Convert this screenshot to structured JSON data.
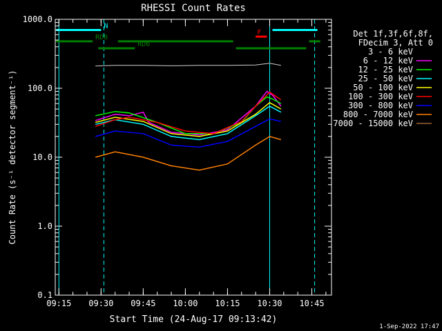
{
  "chart_data": {
    "type": "line",
    "title": "RHESSI Count Rates",
    "xlabel": "Start Time (24-Aug-17 09:13:42)",
    "ylabel": "Count Rate (s⁻¹ detector segment⁻¹)",
    "yscale": "log",
    "xlim": [
      "09:13:42",
      "10:52:00"
    ],
    "ylim": [
      0.1,
      1000.0
    ],
    "xticks": [
      "09:15",
      "09:30",
      "09:45",
      "10:00",
      "10:15",
      "10:30",
      "10:45"
    ],
    "yticks": [
      {
        "value": 0.1,
        "label": "0.1"
      },
      {
        "value": 1.0,
        "label": "1.0"
      },
      {
        "value": 10.0,
        "label": "10.0"
      },
      {
        "value": 100.0,
        "label": "100.0"
      },
      {
        "value": 1000.0,
        "label": "1000.0"
      }
    ],
    "legend_header": [
      "Det 1f,3f,6f,8f,",
      "FDecim 3, Att 0"
    ],
    "legend_position": "right",
    "footer_date": "1-Sep-2022 17:47",
    "data_start": "09:27",
    "data_end": "10:35",
    "series": [
      {
        "name": "3 - 6 keV",
        "color": "#000000",
        "points": [
          [
            "09:28",
            210
          ],
          [
            "09:35",
            215
          ],
          [
            "09:45",
            215
          ],
          [
            "09:55",
            212
          ],
          [
            "10:05",
            215
          ],
          [
            "10:15",
            215
          ],
          [
            "10:25",
            218
          ],
          [
            "10:30",
            230
          ],
          [
            "10:34",
            215
          ]
        ]
      },
      {
        "name": "6 - 12 keV",
        "color": "#ff00ff",
        "points": [
          [
            "09:28",
            34
          ],
          [
            "09:35",
            42
          ],
          [
            "09:40",
            40
          ],
          [
            "09:45",
            45
          ],
          [
            "09:47",
            32
          ],
          [
            "09:55",
            23
          ],
          [
            "10:05",
            21
          ],
          [
            "10:15",
            25
          ],
          [
            "10:25",
            55
          ],
          [
            "10:29",
            90
          ],
          [
            "10:31",
            80
          ],
          [
            "10:34",
            55
          ]
        ]
      },
      {
        "name": "12 - 25 keV",
        "color": "#00ff00",
        "points": [
          [
            "09:28",
            40
          ],
          [
            "09:35",
            46
          ],
          [
            "09:40",
            44
          ],
          [
            "09:50",
            32
          ],
          [
            "10:00",
            22
          ],
          [
            "10:10",
            22
          ],
          [
            "10:20",
            32
          ],
          [
            "10:25",
            55
          ],
          [
            "10:29",
            75
          ],
          [
            "10:31",
            70
          ],
          [
            "10:34",
            60
          ]
        ]
      },
      {
        "name": "25 - 50 keV",
        "color": "#00ffff",
        "points": [
          [
            "09:28",
            30
          ],
          [
            "09:35",
            35
          ],
          [
            "09:45",
            30
          ],
          [
            "09:55",
            20
          ],
          [
            "10:05",
            18
          ],
          [
            "10:15",
            22
          ],
          [
            "10:25",
            40
          ],
          [
            "10:30",
            55
          ],
          [
            "10:34",
            45
          ]
        ]
      },
      {
        "name": "50 - 100 keV",
        "color": "#ffff00",
        "points": [
          [
            "09:28",
            32
          ],
          [
            "09:35",
            38
          ],
          [
            "09:45",
            33
          ],
          [
            "09:55",
            22
          ],
          [
            "10:05",
            20
          ],
          [
            "10:15",
            24
          ],
          [
            "10:25",
            42
          ],
          [
            "10:30",
            62
          ],
          [
            "10:34",
            50
          ]
        ]
      },
      {
        "name": "100 - 300 keV",
        "color": "#ff0000",
        "points": [
          [
            "09:28",
            28
          ],
          [
            "09:35",
            35
          ],
          [
            "09:40",
            38
          ],
          [
            "09:50",
            32
          ],
          [
            "10:00",
            24
          ],
          [
            "10:10",
            22
          ],
          [
            "10:20",
            33
          ],
          [
            "10:25",
            55
          ],
          [
            "10:30",
            88
          ],
          [
            "10:34",
            68
          ]
        ]
      },
      {
        "name": "300 - 800 keV",
        "color": "#0000ff",
        "points": [
          [
            "09:28",
            20
          ],
          [
            "09:35",
            24
          ],
          [
            "09:45",
            22
          ],
          [
            "09:55",
            15
          ],
          [
            "10:05",
            14
          ],
          [
            "10:15",
            17
          ],
          [
            "10:25",
            28
          ],
          [
            "10:30",
            36
          ],
          [
            "10:34",
            33
          ]
        ]
      },
      {
        "name": "800 - 7000 keV",
        "color": "#ff8000",
        "points": [
          [
            "09:28",
            10
          ],
          [
            "09:35",
            12
          ],
          [
            "09:45",
            10
          ],
          [
            "09:55",
            7.5
          ],
          [
            "10:05",
            6.5
          ],
          [
            "10:15",
            8
          ],
          [
            "10:25",
            15
          ],
          [
            "10:30",
            20
          ],
          [
            "10:34",
            18
          ]
        ]
      },
      {
        "name": "7000 - 15000 keV",
        "color": "#996633",
        "points": []
      }
    ],
    "annotations": [
      {
        "label": "N",
        "color": "#00ffff",
        "kind": "bar",
        "segments": [
          [
            "09:14",
            "09:30"
          ],
          [
            "10:31",
            "10:47"
          ]
        ],
        "level": 700
      },
      {
        "label": "RD0",
        "color": "#008000",
        "kind": "bar",
        "segments": [
          [
            "09:14",
            "09:27"
          ],
          [
            "09:36",
            "10:17"
          ],
          [
            "10:44",
            "10:48"
          ]
        ],
        "level": 480
      },
      {
        "label": "RD6",
        "color": "#008000",
        "kind": "bar",
        "segments": [
          [
            "09:29",
            "09:42"
          ],
          [
            "10:18",
            "10:43"
          ]
        ],
        "level": 380
      },
      {
        "label": "F",
        "color": "#ff0000",
        "kind": "bar",
        "segments": [
          [
            "10:25",
            "10:29"
          ]
        ],
        "level": 560
      }
    ],
    "vlines": [
      {
        "time": "09:15",
        "color": "#00ffff",
        "style": "solid"
      },
      {
        "time": "09:31",
        "color": "#00ffff",
        "style": "dashed"
      },
      {
        "time": "10:30",
        "color": "#00ffff",
        "style": "solid"
      },
      {
        "time": "10:46",
        "color": "#00ffff",
        "style": "dashed"
      }
    ]
  }
}
